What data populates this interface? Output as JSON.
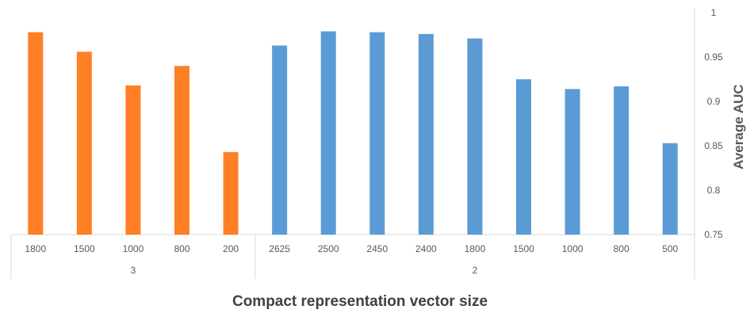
{
  "chart_data": {
    "type": "bar",
    "title": "",
    "xlabel": "Compact representation vector size",
    "ylabel": "Average AUC",
    "ylim": [
      0.75,
      1
    ],
    "yticks": [
      "0.75",
      "0.8",
      "0.85",
      "0.9",
      "0.95",
      "1"
    ],
    "y_axis_side": "right",
    "grid": false,
    "legend": "none",
    "groups": [
      {
        "label": "3",
        "color": "#FF7F27",
        "categories": [
          "1800",
          "1500",
          "1000",
          "800",
          "200"
        ],
        "values": [
          0.978,
          0.956,
          0.918,
          0.94,
          0.843
        ]
      },
      {
        "label": "2",
        "color": "#5B9BD5",
        "categories": [
          "2625",
          "2500",
          "2450",
          "2400",
          "1800",
          "1500",
          "1000",
          "800",
          "500"
        ],
        "values": [
          0.963,
          0.979,
          0.978,
          0.976,
          0.971,
          0.925,
          0.914,
          0.917,
          0.853
        ]
      }
    ]
  }
}
